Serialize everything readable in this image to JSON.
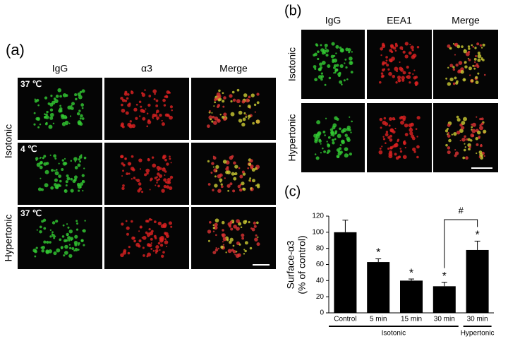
{
  "panel_a": {
    "label": "(a)",
    "columns": [
      "IgG",
      "α3",
      "Merge"
    ],
    "conditions": [
      "37 ℃",
      "4 ℃",
      "37 ℃"
    ],
    "row_labels": [
      "Isotonic",
      "Hypertonic"
    ]
  },
  "panel_b": {
    "label": "(b)",
    "columns": [
      "IgG",
      "EEA1",
      "Merge"
    ],
    "row_labels": [
      "Isotonic",
      "Hypertonic"
    ]
  },
  "chart_data": {
    "type": "bar",
    "label": "(c)",
    "y_label": [
      "Surface-α3",
      "(% of control)"
    ],
    "categories": [
      "Control",
      "5 min",
      "15 min",
      "30 min",
      "30 min"
    ],
    "values": [
      100,
      63,
      40,
      33,
      78
    ],
    "errors": [
      15,
      4,
      2,
      5,
      11
    ],
    "significance": [
      null,
      "*",
      "*",
      "*",
      "*"
    ],
    "comparison": "#",
    "groups": [
      "Isotonic",
      "Hypertonic"
    ],
    "color": "#000000",
    "ylim": [
      0,
      120
    ],
    "yticks": [
      0,
      20,
      40,
      60,
      80,
      100,
      120
    ]
  }
}
